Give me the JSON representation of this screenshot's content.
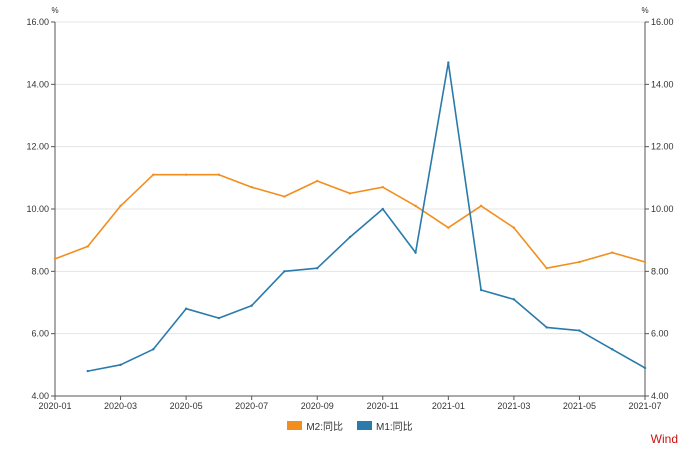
{
  "chart_data": {
    "type": "line",
    "x": [
      "2020-01",
      "2020-02",
      "2020-03",
      "2020-04",
      "2020-05",
      "2020-06",
      "2020-07",
      "2020-08",
      "2020-09",
      "2020-10",
      "2020-11",
      "2020-12",
      "2021-01",
      "2021-02",
      "2021-03",
      "2021-04",
      "2021-05",
      "2021-06",
      "2021-07"
    ],
    "x_tick_labels": [
      "2020-01",
      "2020-03",
      "2020-05",
      "2020-07",
      "2020-09",
      "2020-11",
      "2021-01",
      "2021-03",
      "2021-05",
      "2021-07"
    ],
    "y_tick_labels": [
      "4.00",
      "6.00",
      "8.00",
      "10.00",
      "12.00",
      "14.00",
      "16.00"
    ],
    "ylim": [
      4,
      16
    ],
    "y_unit_left": "%",
    "y_unit_right": "%",
    "grid": true,
    "legend_position": "bottom-center",
    "series": [
      {
        "name": "M2:同比",
        "color": "#f28e1e",
        "values": [
          8.4,
          8.8,
          10.1,
          11.1,
          11.1,
          11.1,
          10.7,
          10.4,
          10.9,
          10.5,
          10.7,
          10.1,
          9.4,
          10.1,
          9.4,
          8.1,
          8.3,
          8.6,
          8.3
        ]
      },
      {
        "name": "M1:同比",
        "color": "#2a7bab",
        "values": [
          null,
          4.8,
          5.0,
          5.5,
          6.8,
          6.5,
          6.9,
          8.0,
          8.1,
          9.1,
          10.0,
          8.6,
          14.7,
          7.4,
          7.1,
          6.2,
          6.1,
          5.5,
          4.9
        ]
      }
    ]
  },
  "source_label": "Wind"
}
